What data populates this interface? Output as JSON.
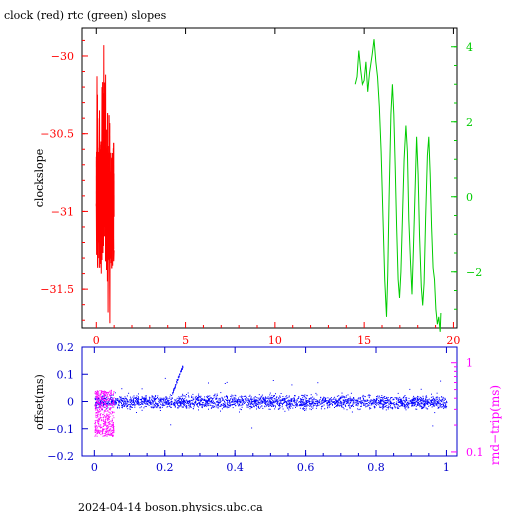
{
  "chart_data": [
    {
      "type": "line",
      "title": "clock (red) rtc (green) slopes",
      "ylabel_left": "clockslope",
      "xlim": [
        -0.8,
        20.2
      ],
      "ylim_left": [
        -31.75,
        -29.82
      ],
      "ylim_right": [
        -3.5,
        4.5
      ],
      "xticks": [
        "0",
        "5",
        "10",
        "15",
        "20"
      ],
      "yticks_left": [
        "-30",
        "-30.5",
        "-31",
        "-31.5"
      ],
      "yticks_right": [
        "4",
        "2",
        "0",
        "-2"
      ],
      "series": [
        {
          "color": "#ff0000",
          "axis": "left",
          "x_range": [
            0.0,
            1.0
          ],
          "points": [
            [
              0.0,
              -30.95
            ],
            [
              0.02,
              -31.28
            ],
            [
              0.04,
              -30.13
            ],
            [
              0.06,
              -30.94
            ],
            [
              0.08,
              -30.4
            ],
            [
              0.1,
              -31.2
            ],
            [
              0.12,
              -30.85
            ],
            [
              0.14,
              -31.3
            ],
            [
              0.16,
              -30.9
            ],
            [
              0.18,
              -30.35
            ],
            [
              0.2,
              -31.2
            ],
            [
              0.22,
              -30.6
            ],
            [
              0.24,
              -31.15
            ],
            [
              0.26,
              -30.55
            ],
            [
              0.28,
              -31.4
            ],
            [
              0.3,
              -30.95
            ],
            [
              0.32,
              -30.2
            ],
            [
              0.34,
              -31.1
            ],
            [
              0.36,
              -30.7
            ],
            [
              0.38,
              -30.25
            ],
            [
              0.4,
              -31.2
            ],
            [
              0.42,
              -29.93
            ],
            [
              0.44,
              -31.05
            ],
            [
              0.46,
              -30.5
            ],
            [
              0.48,
              -31.1
            ],
            [
              0.5,
              -30.8
            ],
            [
              0.52,
              -30.12
            ],
            [
              0.54,
              -31.22
            ],
            [
              0.56,
              -30.9
            ],
            [
              0.58,
              -31.3
            ],
            [
              0.6,
              -30.75
            ],
            [
              0.62,
              -31.45
            ],
            [
              0.64,
              -30.9
            ],
            [
              0.66,
              -31.65
            ],
            [
              0.68,
              -31.0
            ],
            [
              0.7,
              -31.3
            ],
            [
              0.72,
              -30.85
            ],
            [
              0.74,
              -31.25
            ],
            [
              0.76,
              -31.72
            ],
            [
              0.78,
              -30.9
            ],
            [
              0.8,
              -31.2
            ],
            [
              0.82,
              -30.72
            ],
            [
              0.84,
              -31.3
            ],
            [
              0.86,
              -30.95
            ],
            [
              0.88,
              -31.2
            ],
            [
              0.9,
              -30.7
            ],
            [
              0.92,
              -31.35
            ],
            [
              0.94,
              -30.95
            ],
            [
              0.96,
              -31.1
            ],
            [
              0.98,
              -31.32
            ],
            [
              1.0,
              -31.25
            ]
          ]
        },
        {
          "color": "#00cc00",
          "axis": "right",
          "x_range": [
            14.5,
            19.3
          ],
          "points": [
            [
              14.5,
              3.0
            ],
            [
              14.6,
              3.2
            ],
            [
              14.7,
              3.9
            ],
            [
              14.8,
              3.4
            ],
            [
              14.9,
              3.0
            ],
            [
              15.0,
              3.1
            ],
            [
              15.1,
              3.6
            ],
            [
              15.2,
              2.8
            ],
            [
              15.3,
              3.3
            ],
            [
              15.45,
              3.8
            ],
            [
              15.55,
              4.2
            ],
            [
              15.65,
              3.6
            ],
            [
              15.75,
              3.2
            ],
            [
              15.85,
              2.4
            ],
            [
              15.95,
              1.2
            ],
            [
              16.05,
              -0.5
            ],
            [
              16.15,
              -2.2
            ],
            [
              16.25,
              -3.2
            ],
            [
              16.32,
              -2.1
            ],
            [
              16.4,
              0.0
            ],
            [
              16.5,
              2.2
            ],
            [
              16.58,
              3.0
            ],
            [
              16.66,
              2.2
            ],
            [
              16.74,
              0.8
            ],
            [
              16.82,
              -0.8
            ],
            [
              16.9,
              -2.2
            ],
            [
              16.98,
              -2.7
            ],
            [
              17.06,
              -2.0
            ],
            [
              17.14,
              -0.6
            ],
            [
              17.24,
              1.0
            ],
            [
              17.34,
              1.9
            ],
            [
              17.42,
              1.2
            ],
            [
              17.5,
              -0.6
            ],
            [
              17.6,
              -1.8
            ],
            [
              17.68,
              -2.6
            ],
            [
              17.76,
              -1.4
            ],
            [
              17.84,
              0.0
            ],
            [
              17.94,
              1.6
            ],
            [
              18.02,
              0.6
            ],
            [
              18.1,
              -1.0
            ],
            [
              18.2,
              -2.4
            ],
            [
              18.28,
              -2.9
            ],
            [
              18.36,
              -2.3
            ],
            [
              18.44,
              -0.6
            ],
            [
              18.54,
              1.1
            ],
            [
              18.62,
              1.6
            ],
            [
              18.7,
              0.6
            ],
            [
              18.78,
              -0.8
            ],
            [
              18.86,
              -1.9
            ],
            [
              18.94,
              -2.2
            ],
            [
              19.02,
              -3.0
            ],
            [
              19.1,
              -3.4
            ],
            [
              19.18,
              -3.2
            ],
            [
              19.26,
              -3.6
            ],
            [
              19.3,
              -3.1
            ]
          ]
        }
      ]
    },
    {
      "type": "scatter",
      "xlim": [
        -0.035,
        1.03
      ],
      "ylabel_left": "offset(ms)",
      "ylabel_right": "rnd−trip(ms)",
      "ylim_left": [
        -0.2,
        0.2
      ],
      "ylim_right_log": [
        0.09,
        1.5
      ],
      "xticks": [
        "0",
        "0.2",
        "0.4",
        "0.6",
        "0.8",
        "1"
      ],
      "yticks_left": [
        "0.2",
        "0.1",
        "0",
        "-0.1",
        "-0.2"
      ],
      "yticks_right": [
        "1",
        "0.1"
      ],
      "series": [
        {
          "color": "#0000ff",
          "axis": "left",
          "x_range": [
            0.0,
            1.0
          ],
          "typical_offset": 0.0,
          "spread": 0.04,
          "feature": {
            "x_range": [
              0.22,
              0.25
            ],
            "y_range": [
              0.03,
              0.13
            ]
          }
        },
        {
          "color": "#ff00ff",
          "axis": "right",
          "x_range": [
            0.0,
            0.055
          ],
          "y_range": [
            0.15,
            0.5
          ]
        }
      ]
    }
  ],
  "footer": "2024-04-14 boson.physics.ubc.ca"
}
